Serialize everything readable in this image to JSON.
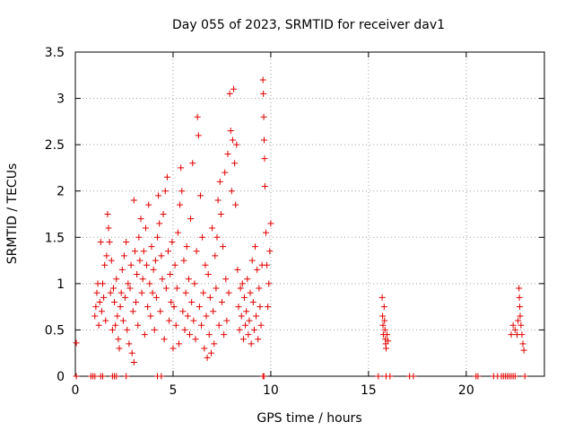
{
  "chart_data": {
    "type": "scatter",
    "title": "Day 055 of 2023, SRMTID for receiver dav1",
    "xlabel": "GPS time / hours",
    "ylabel": "SRMTID / TECUs",
    "xlim": [
      0,
      24
    ],
    "ylim": [
      0,
      3.5
    ],
    "xticks": [
      0,
      5,
      10,
      15,
      20
    ],
    "xtick_labels": [
      "0",
      "5",
      "10",
      "15",
      "20"
    ],
    "yticks": [
      0,
      0.5,
      1,
      1.5,
      2,
      2.5,
      3,
      3.5
    ],
    "ytick_labels": [
      "0",
      "0.5",
      "1",
      "1.5",
      "2",
      "2.5",
      "3",
      "3.5"
    ],
    "grid": true,
    "marker": "+",
    "color": "#e00000",
    "series": [
      {
        "name": "dav1",
        "points": [
          [
            0.05,
            0.36
          ],
          [
            0.05,
            0.0
          ],
          [
            0.8,
            0.0
          ],
          [
            0.9,
            0.0
          ],
          [
            1.0,
            0.0
          ],
          [
            1.3,
            0.0
          ],
          [
            1.4,
            0.0
          ],
          [
            1.9,
            0.0
          ],
          [
            2.0,
            0.0
          ],
          [
            2.1,
            0.0
          ],
          [
            2.6,
            0.0
          ],
          [
            4.2,
            0.0
          ],
          [
            4.4,
            0.0
          ],
          [
            9.6,
            0.0
          ],
          [
            9.65,
            0.0
          ],
          [
            15.5,
            0.0
          ],
          [
            15.9,
            0.0
          ],
          [
            16.1,
            0.0
          ],
          [
            17.1,
            0.0
          ],
          [
            17.3,
            0.0
          ],
          [
            20.5,
            0.0
          ],
          [
            20.6,
            0.0
          ],
          [
            21.4,
            0.0
          ],
          [
            21.6,
            0.0
          ],
          [
            21.8,
            0.0
          ],
          [
            21.9,
            0.0
          ],
          [
            22.0,
            0.0
          ],
          [
            22.1,
            0.0
          ],
          [
            22.2,
            0.0
          ],
          [
            22.3,
            0.0
          ],
          [
            22.4,
            0.0
          ],
          [
            22.5,
            0.0
          ],
          [
            23.0,
            0.0
          ],
          [
            1.0,
            0.65
          ],
          [
            1.05,
            0.75
          ],
          [
            1.1,
            0.9
          ],
          [
            1.15,
            1.0
          ],
          [
            1.2,
            0.55
          ],
          [
            1.25,
            0.8
          ],
          [
            1.3,
            1.45
          ],
          [
            1.35,
            0.7
          ],
          [
            1.4,
            1.0
          ],
          [
            1.45,
            0.85
          ],
          [
            1.5,
            1.2
          ],
          [
            1.55,
            0.6
          ],
          [
            1.6,
            1.3
          ],
          [
            1.65,
            1.75
          ],
          [
            1.7,
            1.6
          ],
          [
            1.75,
            1.45
          ],
          [
            1.8,
            0.9
          ],
          [
            1.85,
            1.25
          ],
          [
            1.9,
            0.5
          ],
          [
            1.95,
            0.95
          ],
          [
            2.0,
            0.8
          ],
          [
            2.05,
            0.55
          ],
          [
            2.1,
            1.05
          ],
          [
            2.15,
            0.65
          ],
          [
            2.2,
            0.4
          ],
          [
            2.25,
            0.3
          ],
          [
            2.3,
            0.75
          ],
          [
            2.35,
            0.9
          ],
          [
            2.4,
            1.15
          ],
          [
            2.45,
            0.6
          ],
          [
            2.5,
            1.3
          ],
          [
            2.55,
            0.85
          ],
          [
            2.6,
            1.45
          ],
          [
            2.65,
            0.5
          ],
          [
            2.7,
            1.0
          ],
          [
            2.75,
            0.35
          ],
          [
            2.8,
            0.95
          ],
          [
            2.85,
            1.2
          ],
          [
            2.9,
            0.25
          ],
          [
            2.95,
            0.7
          ],
          [
            3.0,
            0.15
          ],
          [
            3.0,
            1.9
          ],
          [
            3.05,
            1.35
          ],
          [
            3.1,
            0.8
          ],
          [
            3.15,
            1.1
          ],
          [
            3.2,
            0.55
          ],
          [
            3.25,
            1.5
          ],
          [
            3.3,
            1.25
          ],
          [
            3.35,
            1.7
          ],
          [
            3.4,
            0.9
          ],
          [
            3.45,
            1.05
          ],
          [
            3.5,
            1.35
          ],
          [
            3.55,
            0.45
          ],
          [
            3.6,
            1.6
          ],
          [
            3.65,
            1.2
          ],
          [
            3.7,
            0.75
          ],
          [
            3.75,
            1.85
          ],
          [
            3.8,
            1.0
          ],
          [
            3.85,
            0.65
          ],
          [
            3.9,
            1.4
          ],
          [
            3.95,
            0.9
          ],
          [
            4.0,
            1.15
          ],
          [
            4.05,
            0.5
          ],
          [
            4.1,
            1.25
          ],
          [
            4.15,
            0.85
          ],
          [
            4.2,
            1.5
          ],
          [
            4.25,
            1.95
          ],
          [
            4.3,
            1.65
          ],
          [
            4.35,
            0.7
          ],
          [
            4.4,
            1.3
          ],
          [
            4.45,
            1.05
          ],
          [
            4.5,
            1.75
          ],
          [
            4.55,
            0.4
          ],
          [
            4.6,
            2.0
          ],
          [
            4.65,
            0.95
          ],
          [
            4.7,
            2.15
          ],
          [
            4.75,
            1.35
          ],
          [
            4.8,
            0.6
          ],
          [
            4.85,
            1.1
          ],
          [
            4.9,
            0.8
          ],
          [
            4.95,
            1.45
          ],
          [
            5.0,
            0.3
          ],
          [
            5.05,
            0.75
          ],
          [
            5.1,
            1.2
          ],
          [
            5.15,
            0.55
          ],
          [
            5.2,
            0.95
          ],
          [
            5.25,
            1.55
          ],
          [
            5.3,
            0.35
          ],
          [
            5.35,
            1.85
          ],
          [
            5.4,
            2.25
          ],
          [
            5.45,
            2.0
          ],
          [
            5.5,
            0.7
          ],
          [
            5.55,
            1.25
          ],
          [
            5.6,
            0.5
          ],
          [
            5.65,
            0.9
          ],
          [
            5.7,
            1.4
          ],
          [
            5.75,
            0.65
          ],
          [
            5.8,
            1.05
          ],
          [
            5.85,
            0.45
          ],
          [
            5.9,
            1.7
          ],
          [
            5.95,
            0.8
          ],
          [
            6.0,
            2.3
          ],
          [
            6.05,
            0.6
          ],
          [
            6.1,
            1.0
          ],
          [
            6.15,
            0.4
          ],
          [
            6.2,
            1.35
          ],
          [
            6.25,
            2.8
          ],
          [
            6.3,
            2.6
          ],
          [
            6.35,
            0.75
          ],
          [
            6.4,
            1.95
          ],
          [
            6.45,
            0.55
          ],
          [
            6.5,
            1.5
          ],
          [
            6.55,
            0.9
          ],
          [
            6.6,
            0.3
          ],
          [
            6.65,
            1.2
          ],
          [
            6.7,
            0.65
          ],
          [
            6.75,
            0.2
          ],
          [
            6.8,
            1.1
          ],
          [
            6.85,
            0.45
          ],
          [
            6.9,
            0.85
          ],
          [
            6.95,
            0.25
          ],
          [
            7.0,
            1.6
          ],
          [
            7.05,
            0.7
          ],
          [
            7.1,
            0.35
          ],
          [
            7.15,
            1.3
          ],
          [
            7.2,
            0.95
          ],
          [
            7.25,
            1.5
          ],
          [
            7.3,
            1.9
          ],
          [
            7.35,
            0.55
          ],
          [
            7.4,
            2.1
          ],
          [
            7.45,
            1.75
          ],
          [
            7.5,
            0.8
          ],
          [
            7.55,
            1.4
          ],
          [
            7.6,
            0.45
          ],
          [
            7.65,
            2.2
          ],
          [
            7.7,
            1.05
          ],
          [
            7.75,
            0.6
          ],
          [
            7.8,
            2.4
          ],
          [
            7.85,
            0.9
          ],
          [
            7.9,
            3.05
          ],
          [
            7.95,
            2.65
          ],
          [
            8.0,
            2.0
          ],
          [
            8.05,
            2.55
          ],
          [
            8.1,
            3.1
          ],
          [
            8.15,
            2.3
          ],
          [
            8.2,
            1.85
          ],
          [
            8.25,
            2.5
          ],
          [
            8.3,
            1.15
          ],
          [
            8.35,
            0.75
          ],
          [
            8.4,
            0.5
          ],
          [
            8.45,
            0.95
          ],
          [
            8.5,
            0.65
          ],
          [
            8.55,
            1.0
          ],
          [
            8.6,
            0.4
          ],
          [
            8.65,
            0.85
          ],
          [
            8.7,
            0.55
          ],
          [
            8.75,
            0.7
          ],
          [
            8.8,
            1.05
          ],
          [
            8.85,
            0.45
          ],
          [
            8.9,
            0.6
          ],
          [
            8.95,
            0.9
          ],
          [
            9.0,
            0.35
          ],
          [
            9.05,
            1.25
          ],
          [
            9.1,
            0.8
          ],
          [
            9.15,
            0.5
          ],
          [
            9.2,
            1.4
          ],
          [
            9.25,
            0.65
          ],
          [
            9.3,
            1.15
          ],
          [
            9.35,
            0.4
          ],
          [
            9.4,
            0.95
          ],
          [
            9.45,
            0.75
          ],
          [
            9.5,
            0.55
          ],
          [
            9.55,
            1.2
          ],
          [
            9.6,
            3.2
          ],
          [
            9.62,
            3.05
          ],
          [
            9.64,
            2.8
          ],
          [
            9.66,
            2.55
          ],
          [
            9.68,
            2.35
          ],
          [
            9.7,
            2.05
          ],
          [
            9.75,
            1.55
          ],
          [
            9.8,
            1.2
          ],
          [
            9.85,
            0.75
          ],
          [
            9.9,
            1.0
          ],
          [
            9.95,
            1.35
          ],
          [
            10.0,
            1.65
          ],
          [
            15.7,
            0.85
          ],
          [
            15.72,
            0.65
          ],
          [
            15.74,
            0.55
          ],
          [
            15.76,
            0.45
          ],
          [
            15.8,
            0.75
          ],
          [
            15.82,
            0.6
          ],
          [
            15.84,
            0.5
          ],
          [
            15.86,
            0.4
          ],
          [
            15.88,
            0.35
          ],
          [
            15.9,
            0.3
          ],
          [
            15.95,
            0.45
          ],
          [
            16.0,
            0.38
          ],
          [
            22.3,
            0.45
          ],
          [
            22.4,
            0.55
          ],
          [
            22.5,
            0.5
          ],
          [
            22.6,
            0.45
          ],
          [
            22.65,
            0.6
          ],
          [
            22.7,
            0.95
          ],
          [
            22.72,
            0.85
          ],
          [
            22.74,
            0.75
          ],
          [
            22.76,
            0.65
          ],
          [
            22.8,
            0.55
          ],
          [
            22.85,
            0.45
          ],
          [
            22.9,
            0.35
          ],
          [
            22.95,
            0.28
          ]
        ]
      }
    ]
  }
}
